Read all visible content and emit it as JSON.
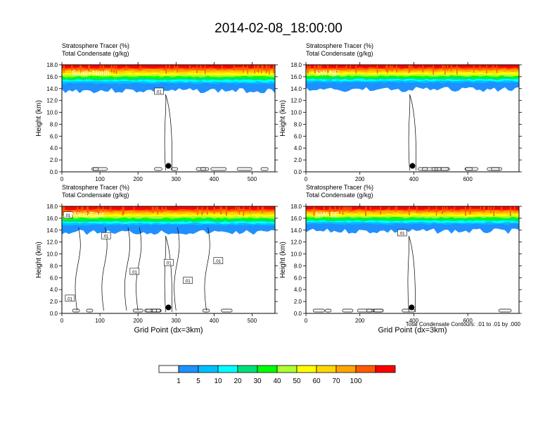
{
  "page_title": "2014-02-08_18:00:00",
  "footnote": "Total Condensate Contours: .01 to .01 by .000",
  "chart_data": [
    {
      "type": "contour",
      "title": "South-North",
      "subtitle_1": "Stratosphere Tracer   (%)",
      "subtitle_2": "Total Condensate   (g/kg)",
      "ylabel": "Height (km)",
      "xlabel": "",
      "xlim": [
        0,
        560
      ],
      "ylim": [
        0,
        18
      ],
      "xticks": [
        0,
        100,
        200,
        300,
        400,
        500
      ],
      "yticks": [
        0,
        2,
        4,
        6,
        8,
        10,
        12,
        14,
        16,
        18
      ],
      "xtick_labels": [
        "0",
        "100",
        "200",
        "300",
        "400",
        "500"
      ],
      "ytick_labels": [
        "0.0",
        "2.0",
        "4.0",
        "6.0",
        "8.0",
        "10.0",
        "12.0",
        "14.0",
        "16.0",
        "18.0"
      ],
      "marker_x": 280,
      "contour_labels": [
        ".01"
      ]
    },
    {
      "type": "contour",
      "title": "SW-NE",
      "subtitle_1": "Stratosphere Tracer   (%)",
      "subtitle_2": "Total Condensate   (g/kg)",
      "ylabel": "Height (km)",
      "xlabel": "",
      "xlim": [
        0,
        790
      ],
      "ylim": [
        0,
        18
      ],
      "xticks": [
        0,
        200,
        400,
        600
      ],
      "yticks": [
        0,
        2,
        4,
        6,
        8,
        10,
        12,
        14,
        16,
        18
      ],
      "xtick_labels": [
        "0",
        "200",
        "400",
        "600"
      ],
      "ytick_labels": [
        "0.0",
        "2.0",
        "4.0",
        "6.0",
        "8.0",
        "10.0",
        "12.0",
        "14.0",
        "16.0",
        "18.0"
      ],
      "marker_x": 395,
      "contour_labels": []
    },
    {
      "type": "contour",
      "title": "West-East",
      "subtitle_1": "Stratosphere Tracer   (%)",
      "subtitle_2": "Total Condensate   (g/kg)",
      "ylabel": "Height (km)",
      "xlabel": "Grid Point (dx=3km)",
      "xlim": [
        0,
        560
      ],
      "ylim": [
        0,
        18
      ],
      "xticks": [
        0,
        100,
        200,
        300,
        400,
        500
      ],
      "yticks": [
        0,
        2,
        4,
        6,
        8,
        10,
        12,
        14,
        16,
        18
      ],
      "xtick_labels": [
        "0",
        "100",
        "200",
        "300",
        "400",
        "500"
      ],
      "ytick_labels": [
        "0.0",
        "2.0",
        "4.0",
        "6.0",
        "8.0",
        "10.0",
        "12.0",
        "14.0",
        "16.0",
        "18.0"
      ],
      "marker_x": 280,
      "contour_labels": [
        ".01",
        ".01",
        ".01",
        ".01",
        ".01",
        ".01",
        ".01"
      ]
    },
    {
      "type": "contour",
      "title": "NW-SE",
      "subtitle_1": "Stratosphere Tracer   (%)",
      "subtitle_2": "Total Condensate   (g/kg)",
      "ylabel": "Height (km)",
      "xlabel": "Grid Point (dx=3km)",
      "xlim": [
        0,
        790
      ],
      "ylim": [
        0,
        18
      ],
      "xticks": [
        0,
        200,
        400,
        600
      ],
      "yticks": [
        0,
        2,
        4,
        6,
        8,
        10,
        12,
        14,
        16,
        18
      ],
      "xtick_labels": [
        "0",
        "200",
        "400",
        "600"
      ],
      "ytick_labels": [
        "0.0",
        "2.0",
        "4.0",
        "6.0",
        "8.0",
        "10.0",
        "12.0",
        "14.0",
        "16.0",
        "18.0"
      ],
      "marker_x": 392,
      "contour_labels": [
        ".01"
      ]
    }
  ],
  "colorbar": {
    "colors": [
      "#ffffff",
      "#1e90ff",
      "#00bfff",
      "#00ffff",
      "#00e07a",
      "#00ff00",
      "#adff2f",
      "#ffff00",
      "#ffd700",
      "#ffa500",
      "#ff5a00",
      "#ff0000"
    ],
    "labels": [
      "1",
      "5",
      "10",
      "20",
      "30",
      "40",
      "50",
      "60",
      "70",
      "100"
    ]
  }
}
